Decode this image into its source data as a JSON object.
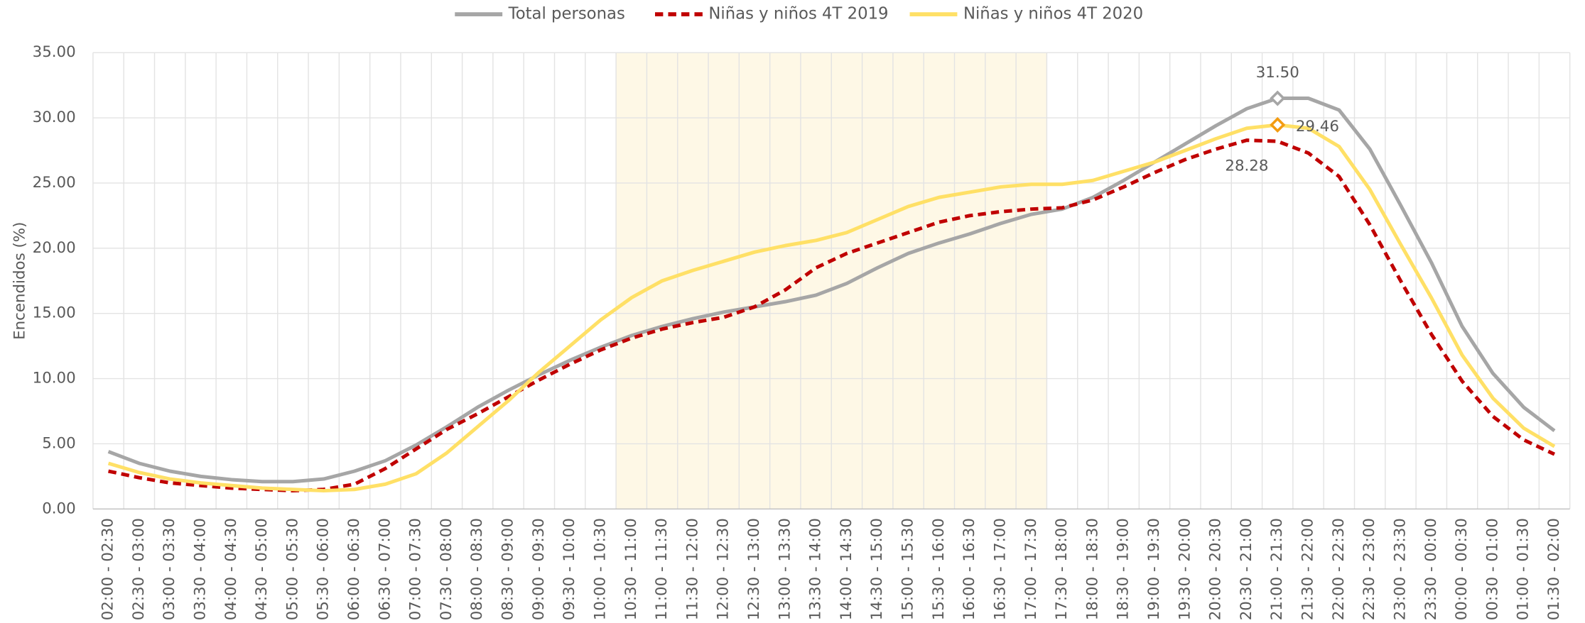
{
  "chart_data": {
    "type": "line",
    "y_label": "Encendidos (%)",
    "categories": [
      "02:00 - 02:30",
      "02:30 - 03:00",
      "03:00 - 03:30",
      "03:30 - 04:00",
      "04:00 - 04:30",
      "04:30 - 05:00",
      "05:00 - 05:30",
      "05:30 - 06:00",
      "06:00 - 06:30",
      "06:30 - 07:00",
      "07:00 - 07:30",
      "07:30 - 08:00",
      "08:00 - 08:30",
      "08:30 - 09:00",
      "09:00 - 09:30",
      "09:30 - 10:00",
      "10:00 - 10:30",
      "10:30 - 11:00",
      "11:00 - 11:30",
      "11:30 - 12:00",
      "12:00 - 12:30",
      "12:30 - 13:00",
      "13:00 - 13:30",
      "13:30 - 14:00",
      "14:00 - 14:30",
      "14:30 - 15:00",
      "15:00 - 15:30",
      "15:30 - 16:00",
      "16:00 - 16:30",
      "16:30 - 17:00",
      "17:00 - 17:30",
      "17:30 - 18:00",
      "18:00 - 18:30",
      "18:30 - 19:00",
      "19:00 - 19:30",
      "19:30 - 20:00",
      "20:00 - 20:30",
      "20:30 - 21:00",
      "21:00 - 21:30",
      "21:30 - 22:00",
      "22:00 - 22:30",
      "22:30 - 23:00",
      "23:00 - 23:30",
      "23:30 - 00:00",
      "00:00 - 00:30",
      "00:30 - 01:00",
      "01:00 - 01:30",
      "01:30 - 02:00"
    ],
    "highlight": [
      "10:30 - 11:00",
      "17:00 - 17:30"
    ],
    "highlight_color": "#fef8e6",
    "series": [
      {
        "name": "Total personas",
        "color": "#a6a6a6",
        "dash": false,
        "marker_color": "#a6a6a6",
        "values": [
          4.4,
          3.5,
          2.9,
          2.5,
          2.25,
          2.1,
          2.1,
          2.3,
          2.9,
          3.7,
          4.9,
          6.3,
          7.8,
          9.1,
          10.3,
          11.4,
          12.4,
          13.3,
          14.0,
          14.6,
          15.1,
          15.5,
          15.9,
          16.4,
          17.3,
          18.5,
          19.6,
          20.4,
          21.1,
          21.9,
          22.6,
          23.0,
          23.9,
          25.2,
          26.6,
          28.0,
          29.4,
          30.7,
          31.5,
          31.5,
          30.6,
          27.6,
          23.3,
          18.9,
          14.0,
          10.4,
          7.8,
          6.0
        ],
        "value_labels": [
          null,
          null,
          null,
          null,
          null,
          null,
          null,
          null,
          null,
          null,
          null,
          null,
          null,
          null,
          null,
          null,
          null,
          null,
          null,
          null,
          null,
          null,
          null,
          null,
          null,
          null,
          null,
          null,
          null,
          null,
          null,
          null,
          null,
          null,
          null,
          null,
          null,
          null,
          "31.50",
          null,
          null,
          null,
          null,
          null,
          null,
          null,
          null,
          null
        ]
      },
      {
        "name": "Niñas y niños 4T 2019",
        "color": "#c00000",
        "dash": true,
        "values": [
          2.9,
          2.4,
          2.0,
          1.8,
          1.6,
          1.5,
          1.4,
          1.5,
          1.9,
          3.1,
          4.6,
          6.1,
          7.3,
          8.6,
          9.9,
          11.1,
          12.2,
          13.1,
          13.8,
          14.3,
          14.7,
          15.5,
          16.8,
          18.5,
          19.6,
          20.4,
          21.2,
          22.0,
          22.5,
          22.8,
          23.0,
          23.1,
          23.7,
          24.7,
          25.8,
          26.8,
          27.6,
          28.28,
          28.2,
          27.3,
          25.5,
          21.8,
          17.5,
          13.4,
          9.8,
          7.1,
          5.3,
          4.2
        ],
        "value_labels": [
          null,
          null,
          null,
          null,
          null,
          null,
          null,
          null,
          null,
          null,
          null,
          null,
          null,
          null,
          null,
          null,
          null,
          null,
          null,
          null,
          null,
          null,
          null,
          null,
          null,
          null,
          null,
          null,
          null,
          null,
          null,
          null,
          null,
          null,
          null,
          null,
          null,
          "28.28",
          null,
          null,
          null,
          null,
          null,
          null,
          null,
          null,
          null,
          null
        ]
      },
      {
        "name": "Niñas y niños 4T 2020",
        "color": "#ffe066",
        "dash": false,
        "marker_color": "#f39c12",
        "values": [
          3.5,
          2.8,
          2.3,
          2.0,
          1.8,
          1.6,
          1.5,
          1.4,
          1.5,
          1.9,
          2.7,
          4.3,
          6.3,
          8.3,
          10.5,
          12.5,
          14.5,
          16.2,
          17.5,
          18.3,
          19.0,
          19.7,
          20.2,
          20.6,
          21.2,
          22.2,
          23.2,
          23.9,
          24.3,
          24.7,
          24.9,
          24.9,
          25.2,
          25.9,
          26.6,
          27.5,
          28.4,
          29.2,
          29.46,
          29.2,
          27.8,
          24.5,
          20.3,
          16.2,
          11.8,
          8.5,
          6.2,
          4.8
        ],
        "value_labels": [
          null,
          null,
          null,
          null,
          null,
          null,
          null,
          null,
          null,
          null,
          null,
          null,
          null,
          null,
          null,
          null,
          null,
          null,
          null,
          null,
          null,
          null,
          null,
          null,
          null,
          null,
          null,
          null,
          null,
          null,
          null,
          null,
          null,
          null,
          null,
          null,
          null,
          null,
          "29.46",
          null,
          null,
          null,
          null,
          null,
          null,
          null,
          null,
          null
        ]
      }
    ],
    "ylim": [
      0,
      35
    ],
    "yticks": [
      {
        "value": 0,
        "label": "0.00"
      },
      {
        "value": 5,
        "label": "5.00"
      },
      {
        "value": 10,
        "label": "10.00"
      },
      {
        "value": 15,
        "label": "15.00"
      },
      {
        "value": 20,
        "label": "20.00"
      },
      {
        "value": 25,
        "label": "25.00"
      },
      {
        "value": 30,
        "label": "30.00"
      },
      {
        "value": 35,
        "label": "35.00"
      }
    ],
    "grid": true,
    "legend": "top"
  }
}
